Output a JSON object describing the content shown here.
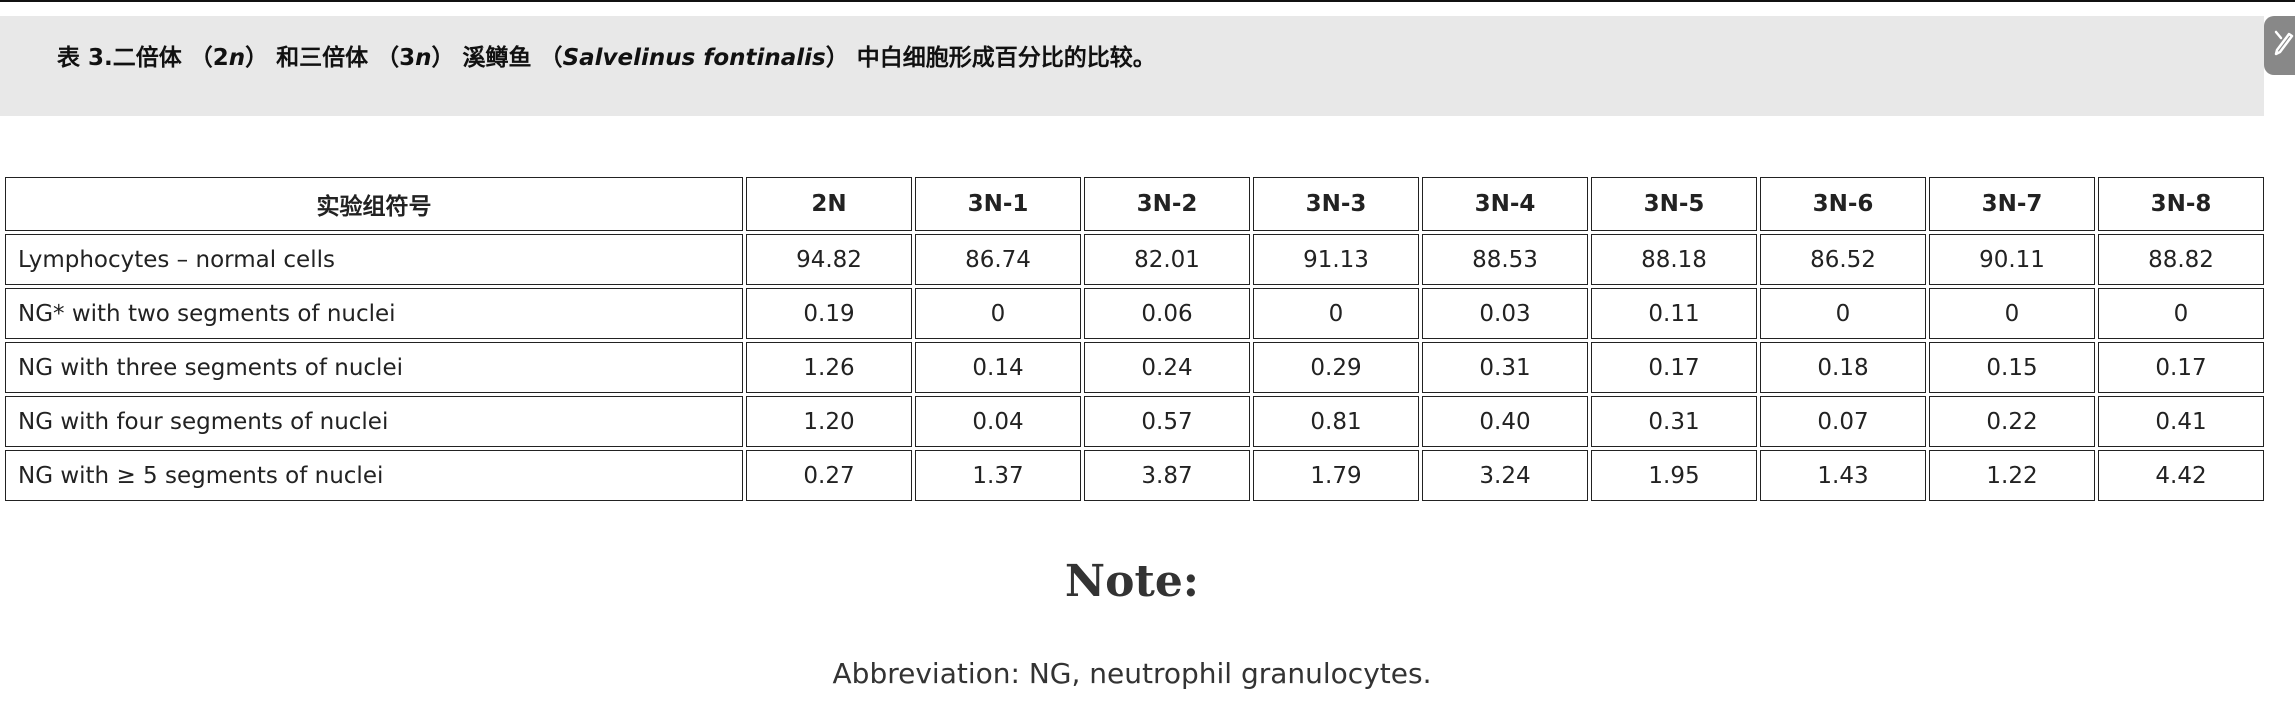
{
  "caption": {
    "prefix": "表 3.二倍体 （2",
    "n1": "n",
    "mid1": "） 和三倍体 （3",
    "n2": "n",
    "mid2": "） 溪鳟鱼 （",
    "species": "Salvelinus fontinalis",
    "suffix": "） 中白细胞形成百分比的比较。"
  },
  "side_button_icon": "pen-off-icon",
  "table": {
    "headers": [
      "实验组符号",
      "2N",
      "3N-1",
      "3N-2",
      "3N-3",
      "3N-4",
      "3N-5",
      "3N-6",
      "3N-7",
      "3N-8"
    ],
    "rows": [
      [
        "Lymphocytes – normal cells",
        "94.82",
        "86.74",
        "82.01",
        "91.13",
        "88.53",
        "88.18",
        "86.52",
        "90.11",
        "88.82"
      ],
      [
        "NG* with two segments of nuclei",
        "0.19",
        "0",
        "0.06",
        "0",
        "0.03",
        "0.11",
        "0",
        "0",
        "0"
      ],
      [
        "NG with three segments of nuclei",
        "1.26",
        "0.14",
        "0.24",
        "0.29",
        "0.31",
        "0.17",
        "0.18",
        "0.15",
        "0.17"
      ],
      [
        "NG with four segments of nuclei",
        "1.20",
        "0.04",
        "0.57",
        "0.81",
        "0.40",
        "0.31",
        "0.07",
        "0.22",
        "0.41"
      ],
      [
        "NG with ≥ 5 segments of nuclei",
        "0.27",
        "1.37",
        "3.87",
        "1.79",
        "3.24",
        "1.95",
        "1.43",
        "1.22",
        "4.42"
      ]
    ]
  },
  "note": {
    "title": "Note:",
    "text": "Abbreviation: NG, neutrophil granulocytes."
  }
}
